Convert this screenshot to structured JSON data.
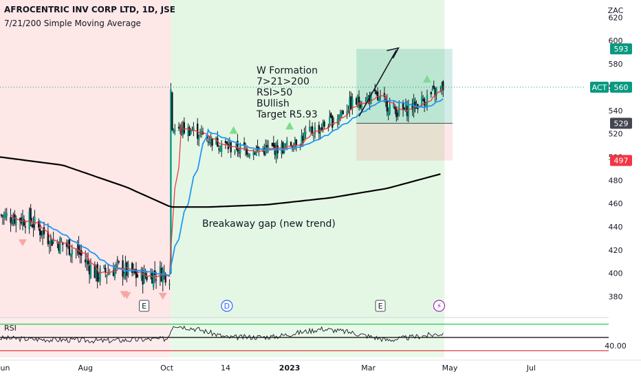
{
  "header": {
    "title": "AFROCENTRIC INV CORP LTD, 1D, JSE",
    "subtitle": "7/21/200 Simple Moving Average"
  },
  "annotations": {
    "w_formation": [
      "W Formation",
      "7>21>200",
      "RSI>50",
      "BUllish",
      "Target R5.93"
    ],
    "breakaway_gap": "Breakaway gap (new trend)"
  },
  "price_tags": {
    "target": {
      "label": "593",
      "color": "#089981"
    },
    "act_label": "ACT",
    "act": {
      "label": "560",
      "color": "#089981"
    },
    "entry": {
      "label": "529",
      "color": "#434651"
    },
    "stop": {
      "label": "497",
      "color": "#f23645"
    }
  },
  "event_markers": [
    "E",
    "D",
    "E",
    "⚡"
  ],
  "colors": {
    "up": "#089981",
    "down": "#f23645",
    "candle": "#131722",
    "sma7": "#f23645",
    "sma21": "#2196f3",
    "sma200": "#000000",
    "bg_bear": "#fde7e7",
    "bg_bull": "#e4f7e4",
    "rsi_line": "#131722",
    "rsi_upper": "#08c43a",
    "rsi_lower": "#e0262d"
  },
  "chart_data": {
    "type": "candlestick",
    "y_axis": {
      "unit_label": "ZAC",
      "ticks": [
        380,
        400,
        420,
        440,
        460,
        480,
        500,
        520,
        540,
        560,
        580,
        600,
        620
      ],
      "range": [
        362,
        635
      ]
    },
    "x_axis": {
      "ticks": [
        {
          "label": "Jun",
          "date": "2022-06-01"
        },
        {
          "label": "Aug",
          "date": "2022-08-01"
        },
        {
          "label": "Oct",
          "date": "2022-10-01"
        },
        {
          "label": "14",
          "date": "2022-11-14"
        },
        {
          "label": "2023",
          "date": "2023-01-01"
        },
        {
          "label": "Mar",
          "date": "2023-03-01"
        },
        {
          "label": "May",
          "date": "2023-05-01"
        },
        {
          "label": "Jul",
          "date": "2023-07-01"
        }
      ],
      "range": [
        "2022-05-29",
        "2023-08-10"
      ]
    },
    "price_keypoints": [
      {
        "date": "2022-05-29",
        "close": 450
      },
      {
        "date": "2022-06-20",
        "close": 446
      },
      {
        "date": "2022-07-05",
        "close": 430
      },
      {
        "date": "2022-07-25",
        "close": 420
      },
      {
        "date": "2022-08-10",
        "close": 398
      },
      {
        "date": "2022-08-25",
        "close": 405
      },
      {
        "date": "2022-09-10",
        "close": 397
      },
      {
        "date": "2022-09-28",
        "close": 401
      },
      {
        "date": "2022-10-03",
        "close": 398
      },
      {
        "date": "2022-10-04",
        "close": 525
      },
      {
        "date": "2022-10-20",
        "close": 523
      },
      {
        "date": "2022-11-05",
        "close": 514
      },
      {
        "date": "2022-11-20",
        "close": 507
      },
      {
        "date": "2022-12-10",
        "close": 506
      },
      {
        "date": "2022-12-28",
        "close": 508
      },
      {
        "date": "2023-01-15",
        "close": 520
      },
      {
        "date": "2023-02-01",
        "close": 530
      },
      {
        "date": "2023-02-15",
        "close": 545
      },
      {
        "date": "2023-03-05",
        "close": 552
      },
      {
        "date": "2023-03-15",
        "close": 545
      },
      {
        "date": "2023-03-25",
        "close": 538
      },
      {
        "date": "2023-04-10",
        "close": 548
      },
      {
        "date": "2023-04-26",
        "close": 560
      }
    ],
    "sma200_keypoints": [
      {
        "date": "2022-05-29",
        "value": 500
      },
      {
        "date": "2022-07-15",
        "value": 493
      },
      {
        "date": "2022-09-01",
        "value": 474
      },
      {
        "date": "2022-10-04",
        "value": 457
      },
      {
        "date": "2022-11-01",
        "value": 457
      },
      {
        "date": "2022-12-15",
        "value": 459
      },
      {
        "date": "2023-02-01",
        "value": 465
      },
      {
        "date": "2023-03-15",
        "value": 473
      },
      {
        "date": "2023-04-26",
        "value": 486
      }
    ],
    "series": [
      {
        "name": "7",
        "type": "sma"
      },
      {
        "name": "21",
        "type": "sma"
      },
      {
        "name": "200",
        "type": "sma"
      }
    ],
    "background_regions": [
      {
        "from": "2022-05-29",
        "to": "2022-10-04",
        "trend": "bearish"
      },
      {
        "from": "2022-10-04",
        "to": "2023-04-27",
        "trend": "bullish"
      }
    ],
    "position": {
      "type": "long",
      "from": "2023-02-20",
      "to": "2023-05-03",
      "entry": 529,
      "target": 593,
      "stop": 497
    },
    "signals": [
      {
        "date": "2022-06-15",
        "type": "sell"
      },
      {
        "date": "2022-08-30",
        "type": "sell"
      },
      {
        "date": "2022-09-01",
        "type": "sell"
      },
      {
        "date": "2022-09-28",
        "type": "sell"
      },
      {
        "date": "2022-11-20",
        "type": "buy"
      },
      {
        "date": "2023-01-01",
        "type": "buy"
      },
      {
        "date": "2023-04-14",
        "type": "buy"
      }
    ],
    "events": [
      {
        "date": "2022-09-14",
        "type": "E"
      },
      {
        "date": "2022-11-15",
        "type": "D"
      },
      {
        "date": "2023-03-10",
        "type": "E"
      },
      {
        "date": "2023-04-23",
        "type": "split"
      }
    ],
    "rsi": {
      "label": "RSI",
      "level_label": "40.00",
      "range": [
        20,
        80
      ],
      "upper": 70,
      "mid": 50,
      "lower": 30,
      "keypoints": [
        {
          "date": "2022-05-29",
          "value": 49
        },
        {
          "date": "2022-07-01",
          "value": 47
        },
        {
          "date": "2022-08-15",
          "value": 45
        },
        {
          "date": "2022-10-01",
          "value": 48
        },
        {
          "date": "2022-10-06",
          "value": 69
        },
        {
          "date": "2022-10-25",
          "value": 62
        },
        {
          "date": "2022-11-15",
          "value": 50
        },
        {
          "date": "2022-12-20",
          "value": 51
        },
        {
          "date": "2023-01-25",
          "value": 63
        },
        {
          "date": "2023-02-15",
          "value": 58
        },
        {
          "date": "2023-03-15",
          "value": 46
        },
        {
          "date": "2023-04-26",
          "value": 56
        }
      ]
    }
  }
}
